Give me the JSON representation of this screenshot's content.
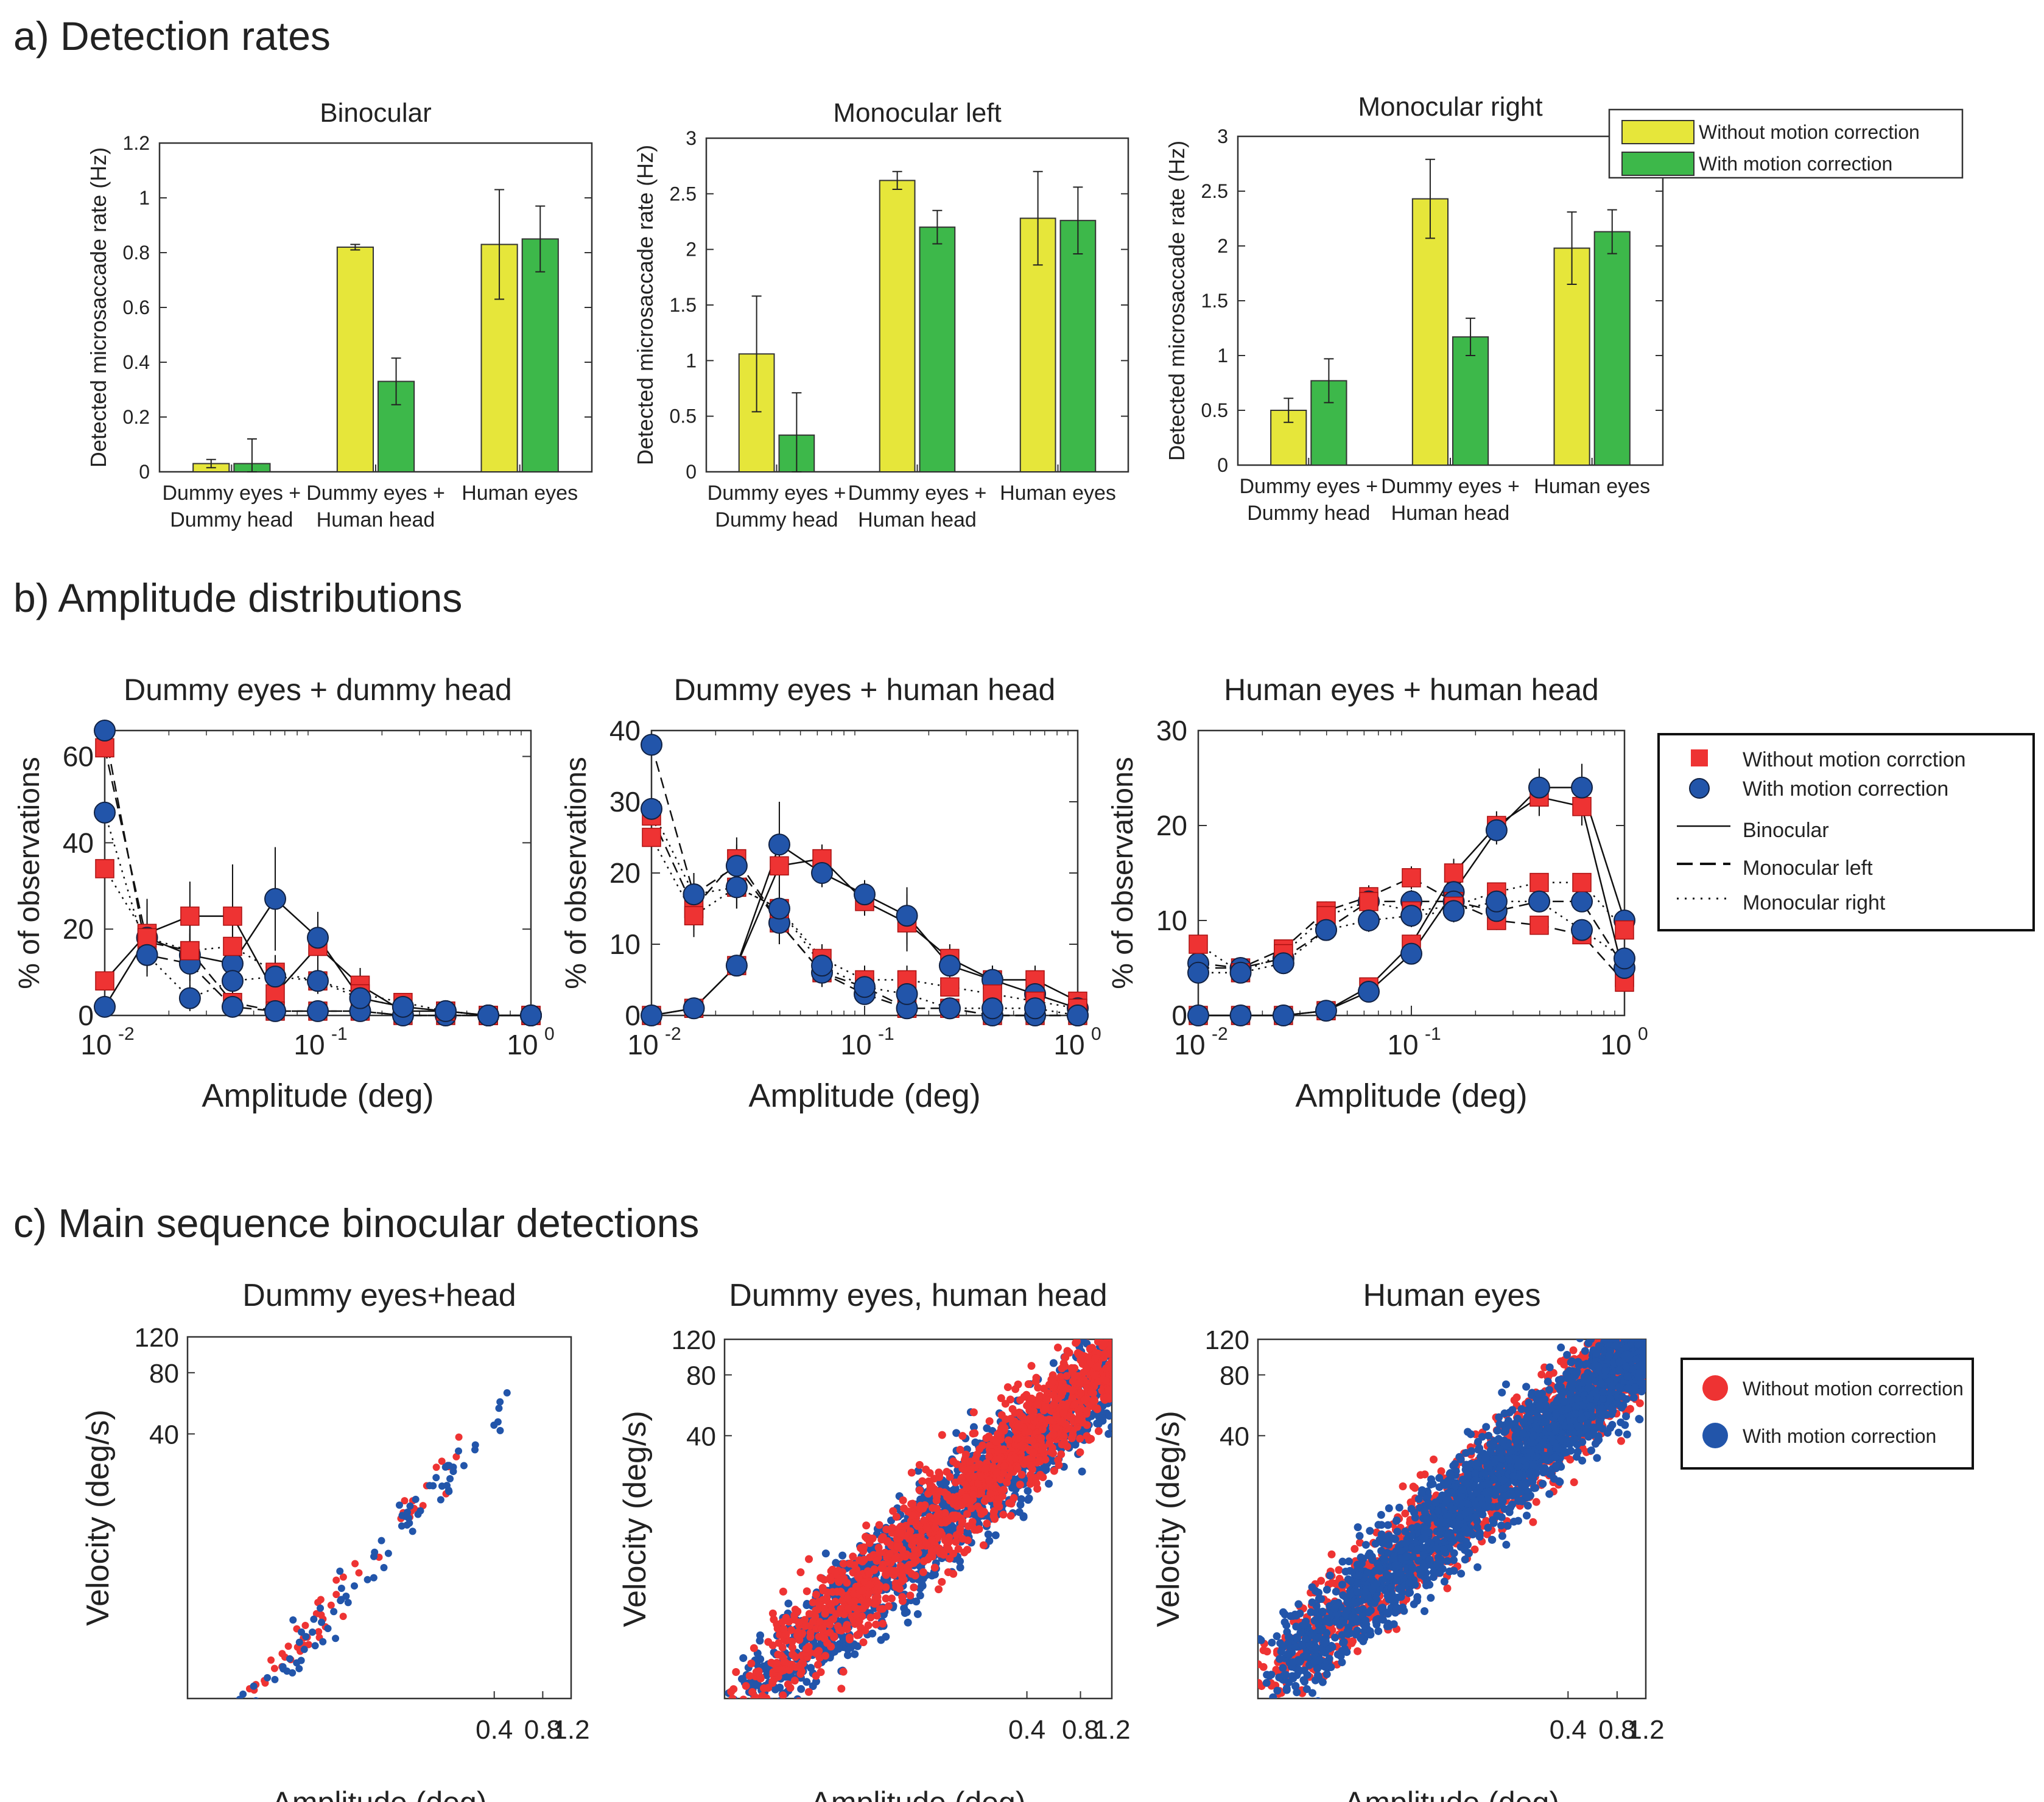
{
  "chart_data": [
    {
      "panel": "a",
      "type": "bar",
      "section_title": "a) Detection rates",
      "title": "Binocular",
      "ylabel": "Detected microsaccade rate (Hz)",
      "categories": [
        "Dummy eyes +\nDummy head",
        "Dummy eyes +\nHuman head",
        "Human eyes"
      ],
      "ylim": [
        0,
        1.2
      ],
      "yticks": [
        0,
        0.2,
        0.4,
        0.6,
        0.8,
        1,
        1.2
      ],
      "series": [
        {
          "name": "Without motion correction",
          "color": "#e6e63a",
          "values": [
            0.03,
            0.82,
            0.83
          ],
          "errors": [
            0.015,
            0.01,
            0.2
          ]
        },
        {
          "name": "With motion correction",
          "color": "#3db84a",
          "values": [
            0.03,
            0.33,
            0.85
          ],
          "errors": [
            0.09,
            0.085,
            0.12
          ]
        }
      ]
    },
    {
      "panel": "a",
      "type": "bar",
      "title": "Monocular left",
      "ylabel": "Detected microsaccade rate (Hz)",
      "categories": [
        "Dummy eyes +\nDummy head",
        "Dummy eyes +\nHuman head",
        "Human eyes"
      ],
      "ylim": [
        0,
        3
      ],
      "yticks": [
        0,
        0.5,
        1,
        1.5,
        2,
        2.5,
        3
      ],
      "series": [
        {
          "name": "Without motion correction",
          "color": "#e6e63a",
          "values": [
            1.06,
            2.62,
            2.28
          ],
          "errors": [
            0.52,
            0.08,
            0.42
          ]
        },
        {
          "name": "With motion correction",
          "color": "#3db84a",
          "values": [
            0.33,
            2.2,
            2.26
          ],
          "errors": [
            0.38,
            0.15,
            0.3
          ]
        }
      ]
    },
    {
      "panel": "a",
      "type": "bar",
      "title": "Monocular right",
      "ylabel": "Detected microsaccade rate (Hz)",
      "categories": [
        "Dummy eyes +\nDummy head",
        "Dummy eyes +\nHuman head",
        "Human eyes"
      ],
      "ylim": [
        0,
        3
      ],
      "yticks": [
        0,
        0.5,
        1,
        1.5,
        2,
        2.5,
        3
      ],
      "legend": [
        "Without motion correction",
        "With motion correction"
      ],
      "series": [
        {
          "name": "Without motion correction",
          "color": "#e6e63a",
          "values": [
            0.5,
            2.43,
            1.98
          ],
          "errors": [
            0.11,
            0.36,
            0.33
          ]
        },
        {
          "name": "With motion correction",
          "color": "#3db84a",
          "values": [
            0.77,
            1.17,
            2.13
          ],
          "errors": [
            0.2,
            0.17,
            0.2
          ]
        }
      ]
    },
    {
      "panel": "b",
      "type": "line",
      "section_title": "b) Amplitude distributions",
      "title": "Dummy eyes + dummy head",
      "xlabel": "Amplitude (deg)",
      "ylabel": "% of observations",
      "xscale": "log",
      "xlim": [
        0.01,
        1
      ],
      "ylim": [
        0,
        66
      ],
      "yticks": [
        0,
        20,
        40,
        60
      ],
      "x": [
        0.01,
        0.0158,
        0.0251,
        0.0398,
        0.0631,
        0.1,
        0.158,
        0.251,
        0.398,
        0.631,
        1.0
      ],
      "series": [
        {
          "name": "Without motion correction",
          "style": "binocular",
          "values": [
            8,
            19,
            23,
            23,
            5,
            16,
            7,
            1,
            1,
            0,
            0
          ],
          "errors": [
            0,
            8,
            8,
            12,
            5,
            5,
            4,
            1,
            1,
            0,
            0
          ]
        },
        {
          "name": "With motion correction",
          "style": "binocular",
          "values": [
            2,
            18,
            14,
            12,
            27,
            18,
            4,
            2,
            1,
            0,
            0
          ],
          "errors": [
            0,
            8,
            8,
            8,
            12,
            6,
            3,
            2,
            1,
            0,
            0
          ]
        },
        {
          "name": "Without motion correction",
          "style": "monocular-left",
          "values": [
            62,
            17,
            15,
            3,
            1,
            1,
            1,
            0,
            0,
            0,
            0
          ],
          "errors": [
            0,
            4,
            4,
            2,
            1,
            1,
            1,
            0,
            0,
            0,
            0
          ]
        },
        {
          "name": "With motion correction",
          "style": "monocular-left",
          "values": [
            66,
            14,
            12,
            2,
            1,
            1,
            1,
            0,
            0,
            0,
            0
          ],
          "errors": [
            0,
            4,
            4,
            2,
            1,
            1,
            1,
            0,
            0,
            0,
            0
          ]
        },
        {
          "name": "Without motion correction",
          "style": "monocular-right",
          "values": [
            34,
            18,
            15,
            16,
            10,
            8,
            5,
            3,
            1,
            0,
            0
          ],
          "errors": [
            0,
            5,
            5,
            5,
            4,
            3,
            3,
            2,
            1,
            0,
            0
          ]
        },
        {
          "name": "With motion correction",
          "style": "monocular-right",
          "values": [
            47,
            14,
            4,
            8,
            9,
            8,
            4,
            2,
            1,
            0,
            0
          ],
          "errors": [
            0,
            5,
            3,
            4,
            4,
            3,
            3,
            2,
            1,
            0,
            0
          ]
        }
      ]
    },
    {
      "panel": "b",
      "type": "line",
      "title": "Dummy eyes + human head",
      "xlabel": "Amplitude (deg)",
      "ylabel": "% of observations",
      "xscale": "log",
      "xlim": [
        0.01,
        1
      ],
      "ylim": [
        0,
        40
      ],
      "yticks": [
        0,
        10,
        20,
        30,
        40
      ],
      "x": [
        0.01,
        0.0158,
        0.0251,
        0.0398,
        0.0631,
        0.1,
        0.158,
        0.251,
        0.398,
        0.631,
        1.0
      ],
      "series": [
        {
          "name": "Without motion correction",
          "style": "binocular",
          "values": [
            0,
            1,
            7,
            21,
            22,
            16,
            13,
            8,
            5,
            5,
            2
          ],
          "errors": [
            0,
            0,
            1,
            4,
            2,
            2,
            4,
            2,
            2,
            2,
            1
          ]
        },
        {
          "name": "With motion correction",
          "style": "binocular",
          "values": [
            0,
            1,
            7,
            24,
            20,
            17,
            14,
            7,
            5,
            3,
            1
          ],
          "errors": [
            0,
            0,
            1,
            6,
            2,
            2,
            4,
            2,
            2,
            2,
            1
          ]
        },
        {
          "name": "Without motion correction",
          "style": "monocular-left",
          "values": [
            28,
            15,
            22,
            13,
            6,
            4,
            1,
            1,
            0,
            0,
            0
          ],
          "errors": [
            0,
            3,
            3,
            3,
            2,
            1,
            1,
            0,
            0,
            0,
            0
          ]
        },
        {
          "name": "With motion correction",
          "style": "monocular-left",
          "values": [
            38,
            17,
            21,
            13,
            6,
            3,
            1,
            1,
            0,
            0,
            0
          ],
          "errors": [
            0,
            3,
            3,
            3,
            2,
            1,
            1,
            0,
            0,
            0,
            0
          ]
        },
        {
          "name": "Without motion correction",
          "style": "monocular-right",
          "values": [
            25,
            14,
            18,
            15,
            8,
            5,
            5,
            4,
            3,
            2,
            1
          ],
          "errors": [
            0,
            3,
            3,
            3,
            2,
            2,
            2,
            1,
            1,
            1,
            0
          ]
        },
        {
          "name": "With motion correction",
          "style": "monocular-right",
          "values": [
            29,
            17,
            18,
            15,
            7,
            4,
            3,
            1,
            1,
            1,
            0
          ],
          "errors": [
            0,
            3,
            3,
            3,
            2,
            2,
            1,
            1,
            1,
            1,
            0
          ]
        }
      ]
    },
    {
      "panel": "b",
      "type": "line",
      "title": "Human eyes + human head",
      "xlabel": "Amplitude (deg)",
      "ylabel": "% of observations",
      "xscale": "log",
      "xlim": [
        0.01,
        1
      ],
      "ylim": [
        0,
        30
      ],
      "yticks": [
        0,
        10,
        20,
        30
      ],
      "x": [
        0.01,
        0.0158,
        0.0251,
        0.0398,
        0.0631,
        0.1,
        0.158,
        0.251,
        0.398,
        0.631,
        1.0
      ],
      "legend": [
        "Without motion corrction",
        "With motion correction",
        "Binocular",
        "Monocular left",
        "Monocular right"
      ],
      "series": [
        {
          "name": "Without motion correction",
          "style": "binocular",
          "values": [
            0,
            0,
            0,
            0.5,
            3,
            7.5,
            15,
            20,
            23,
            22,
            4
          ],
          "errors": [
            0,
            0,
            0,
            0.3,
            0.8,
            1,
            1.5,
            1.5,
            2,
            2,
            1
          ]
        },
        {
          "name": "With motion correction",
          "style": "binocular",
          "values": [
            0,
            0,
            0,
            0.5,
            2.5,
            6.5,
            13,
            19.5,
            24,
            24,
            10
          ],
          "errors": [
            0,
            0,
            0,
            0.3,
            0.8,
            1,
            1.5,
            1.5,
            2,
            2.5,
            1
          ]
        },
        {
          "name": "Without motion correction",
          "style": "monocular-left",
          "values": [
            5,
            5,
            7,
            11,
            12.5,
            14.5,
            12,
            10,
            9.5,
            8.5,
            3.5
          ],
          "errors": [
            0,
            0.8,
            0.8,
            1,
            1.2,
            1.2,
            1.2,
            1,
            1,
            1,
            0.8
          ]
        },
        {
          "name": "With motion correction",
          "style": "monocular-left",
          "values": [
            5.5,
            5,
            6,
            9,
            12,
            12,
            12,
            11,
            12,
            12,
            5
          ],
          "errors": [
            0,
            0.8,
            0.8,
            1,
            1.2,
            1.2,
            1.2,
            1,
            1,
            1,
            0.8
          ]
        },
        {
          "name": "Without motion correction",
          "style": "monocular-right",
          "values": [
            7.5,
            4.5,
            6.5,
            10.5,
            12,
            11,
            11.5,
            13,
            14,
            14,
            9
          ],
          "errors": [
            0,
            0.8,
            0.8,
            1,
            1.2,
            1.2,
            1.2,
            1,
            1,
            1,
            0.8
          ]
        },
        {
          "name": "With motion correction",
          "style": "monocular-right",
          "values": [
            4.5,
            4.5,
            5.5,
            9,
            10,
            10.5,
            11,
            12,
            12,
            9,
            6
          ],
          "errors": [
            0,
            0.8,
            0.8,
            1,
            1.2,
            1.2,
            1.2,
            1,
            1,
            1,
            0.8
          ]
        }
      ]
    },
    {
      "panel": "c",
      "type": "scatter",
      "section_title": "c) Main sequence binocular detections",
      "title": "Dummy eyes+head",
      "xlabel": "Amplitude (deg)",
      "ylabel": "Velocity (deg/s)",
      "xscale": "log",
      "yscale": "log",
      "xlim": [
        0.005,
        1.2
      ],
      "ylim": [
        2,
        120
      ],
      "xticks": [
        0.4,
        0.8,
        1.2
      ],
      "yticks": [
        40,
        80,
        120
      ],
      "n_points": {
        "Without motion correction": 70,
        "With motion correction": 90
      },
      "series": [
        {
          "name": "Without motion correction",
          "color": "#ee3333",
          "trend": {
            "x_range": [
              0.005,
              0.25
            ],
            "slope": 0.95,
            "intercept_at_0.1": 14
          }
        },
        {
          "name": "With motion correction",
          "color": "#2255aa",
          "trend": {
            "x_range": [
              0.008,
              0.5
            ],
            "slope": 0.95,
            "intercept_at_0.1": 13
          }
        }
      ]
    },
    {
      "panel": "c",
      "type": "scatter",
      "title": "Dummy eyes, human head",
      "xlabel": "Amplitude (deg)",
      "ylabel": "Velocity (deg/s)",
      "xscale": "log",
      "yscale": "log",
      "xlim": [
        0.008,
        1.2
      ],
      "ylim": [
        2,
        120
      ],
      "xticks": [
        0.4,
        0.8,
        1.2
      ],
      "yticks": [
        40,
        80,
        120
      ],
      "n_points": {
        "Without motion correction": 1200,
        "With motion correction": 1500
      },
      "series": [
        {
          "name": "Without motion correction",
          "color": "#ee3333",
          "trend": {
            "x_range": [
              0.008,
              1.2
            ],
            "slope": 0.8,
            "intercept_at_0.1": 13
          }
        },
        {
          "name": "With motion correction",
          "color": "#2255aa",
          "trend": {
            "x_range": [
              0.008,
              1.2
            ],
            "slope": 0.8,
            "intercept_at_0.1": 12
          }
        }
      ]
    },
    {
      "panel": "c",
      "type": "scatter",
      "title": "Human eyes",
      "xlabel": "Amplitude (deg)",
      "ylabel": "Velocity (deg/s)",
      "xscale": "log",
      "yscale": "log",
      "xlim": [
        0.005,
        1.2
      ],
      "ylim": [
        2,
        120
      ],
      "xticks": [
        0.4,
        0.8,
        1.2
      ],
      "yticks": [
        40,
        80,
        120
      ],
      "legend": [
        "Without motion correction",
        "With motion correction"
      ],
      "n_points": {
        "Without motion correction": 1500,
        "With motion correction": 2000
      },
      "series": [
        {
          "name": "Without motion correction",
          "color": "#ee3333",
          "trend": {
            "x_range": [
              0.005,
              1.2
            ],
            "slope": 0.72,
            "intercept_at_0.1": 20
          }
        },
        {
          "name": "With motion correction",
          "color": "#2255aa",
          "trend": {
            "x_range": [
              0.005,
              1.2
            ],
            "slope": 0.72,
            "intercept_at_0.1": 19
          }
        }
      ]
    }
  ]
}
